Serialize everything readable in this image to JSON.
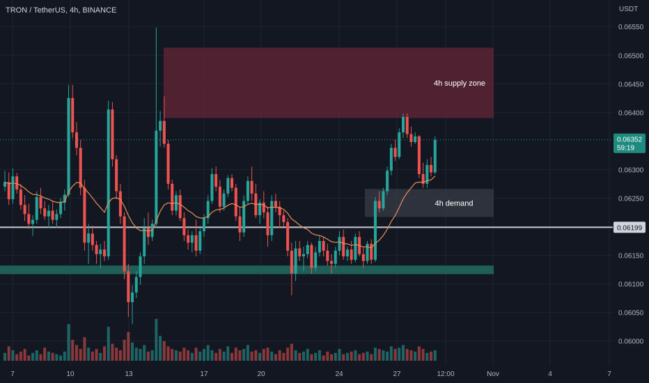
{
  "header": {
    "symbol_title": "TRON / TetherUS, 4h, BINANCE",
    "currency": "USDT"
  },
  "colors": {
    "background": "#131722",
    "grid": "#1e2433",
    "up": "#26a69a",
    "down": "#ef5350",
    "ema": "#e8905a",
    "supply_zone": "#5c2434",
    "demand_zone": "#363a45",
    "support_band": "#1f5f58",
    "horizontal_line": "#c9cbd1"
  },
  "chart_data": {
    "type": "candlestick",
    "y_axis": {
      "range": [
        0.05985,
        0.0656
      ],
      "ticks": [
        "0.06550",
        "0.06500",
        "0.06450",
        "0.06400",
        "0.06300",
        "0.06250",
        "0.06150",
        "0.06100",
        "0.06050",
        "0.06000"
      ],
      "current_price": "0.06352",
      "countdown": "59:19",
      "horizontal_line_label": "0.06199"
    },
    "x_axis": {
      "labels": [
        "7",
        "10",
        "13",
        "17",
        "20",
        "24",
        "27",
        "12:00",
        "Nov",
        "4",
        "7"
      ]
    },
    "annotations": {
      "supply_zone": {
        "label": "4h supply zone",
        "top": 0.06513,
        "bottom": 0.0639
      },
      "demand_zone": {
        "label": "4h demand",
        "top": 0.06266,
        "bottom": 0.06217
      },
      "support_band": {
        "top": 0.06132,
        "bottom": 0.06117
      },
      "horizontal_line": 0.06199
    },
    "candles": [
      [
        0.0627,
        0.06298,
        0.06262,
        0.06278
      ],
      [
        0.06278,
        0.06295,
        0.06238,
        0.06248
      ],
      [
        0.06248,
        0.06302,
        0.0624,
        0.06288
      ],
      [
        0.06288,
        0.06294,
        0.06258,
        0.06265
      ],
      [
        0.06265,
        0.06275,
        0.0623,
        0.06238
      ],
      [
        0.06238,
        0.06255,
        0.0621,
        0.06222
      ],
      [
        0.06222,
        0.0624,
        0.06196,
        0.06205
      ],
      [
        0.06205,
        0.0622,
        0.06184,
        0.06212
      ],
      [
        0.06212,
        0.06262,
        0.06205,
        0.06252
      ],
      [
        0.06252,
        0.06268,
        0.06222,
        0.06232
      ],
      [
        0.06232,
        0.06245,
        0.06212,
        0.06218
      ],
      [
        0.06218,
        0.06238,
        0.06198,
        0.06228
      ],
      [
        0.06228,
        0.06245,
        0.06205,
        0.06212
      ],
      [
        0.06212,
        0.0623,
        0.06198,
        0.06222
      ],
      [
        0.06222,
        0.0625,
        0.06215,
        0.06242
      ],
      [
        0.06242,
        0.06265,
        0.06228,
        0.06256
      ],
      [
        0.06256,
        0.06448,
        0.06252,
        0.06425
      ],
      [
        0.06425,
        0.06448,
        0.06355,
        0.06365
      ],
      [
        0.06365,
        0.06383,
        0.06325,
        0.06338
      ],
      [
        0.06338,
        0.06352,
        0.06255,
        0.06268
      ],
      [
        0.06268,
        0.06282,
        0.06158,
        0.06172
      ],
      [
        0.06172,
        0.06205,
        0.06135,
        0.06188
      ],
      [
        0.06188,
        0.06202,
        0.06158,
        0.06168
      ],
      [
        0.06168,
        0.06175,
        0.06135,
        0.06152
      ],
      [
        0.06152,
        0.0617,
        0.06128,
        0.0616
      ],
      [
        0.0616,
        0.06175,
        0.0614,
        0.06148
      ],
      [
        0.06148,
        0.0642,
        0.06142,
        0.06405
      ],
      [
        0.06405,
        0.06418,
        0.06305,
        0.06318
      ],
      [
        0.06318,
        0.06325,
        0.06248,
        0.06262
      ],
      [
        0.06262,
        0.06275,
        0.06205,
        0.06218
      ],
      [
        0.06218,
        0.06225,
        0.06108,
        0.06122
      ],
      [
        0.06122,
        0.06135,
        0.06042,
        0.06068
      ],
      [
        0.06068,
        0.06098,
        0.0603,
        0.06085
      ],
      [
        0.06085,
        0.06122,
        0.06075,
        0.06112
      ],
      [
        0.06112,
        0.06155,
        0.06098,
        0.06148
      ],
      [
        0.06148,
        0.06215,
        0.06135,
        0.06198
      ],
      [
        0.06198,
        0.06225,
        0.06168,
        0.06182
      ],
      [
        0.06182,
        0.06212,
        0.06175,
        0.06205
      ],
      [
        0.06205,
        0.06548,
        0.06198,
        0.06368
      ],
      [
        0.06368,
        0.06402,
        0.0634,
        0.06385
      ],
      [
        0.06385,
        0.06428,
        0.06338,
        0.06345
      ],
      [
        0.06345,
        0.06352,
        0.06265,
        0.06275
      ],
      [
        0.06275,
        0.06282,
        0.0622,
        0.06228
      ],
      [
        0.06228,
        0.06262,
        0.0622,
        0.06255
      ],
      [
        0.06255,
        0.06265,
        0.0621,
        0.06215
      ],
      [
        0.06215,
        0.06225,
        0.06175,
        0.06185
      ],
      [
        0.06185,
        0.06195,
        0.0616,
        0.06172
      ],
      [
        0.06172,
        0.06192,
        0.06155,
        0.06185
      ],
      [
        0.06185,
        0.06212,
        0.06148,
        0.06158
      ],
      [
        0.06158,
        0.06198,
        0.06152,
        0.06192
      ],
      [
        0.06192,
        0.06222,
        0.06182,
        0.06215
      ],
      [
        0.06215,
        0.06255,
        0.06205,
        0.06245
      ],
      [
        0.06245,
        0.06302,
        0.0624,
        0.06292
      ],
      [
        0.06292,
        0.06305,
        0.06262,
        0.0627
      ],
      [
        0.0627,
        0.06282,
        0.06225,
        0.06235
      ],
      [
        0.06235,
        0.06265,
        0.06228,
        0.06258
      ],
      [
        0.06258,
        0.0629,
        0.06252,
        0.06285
      ],
      [
        0.06285,
        0.06292,
        0.06262,
        0.06268
      ],
      [
        0.06268,
        0.06275,
        0.0621,
        0.06218
      ],
      [
        0.06218,
        0.06235,
        0.06175,
        0.0619
      ],
      [
        0.0619,
        0.06255,
        0.06182,
        0.06245
      ],
      [
        0.06245,
        0.06288,
        0.0624,
        0.0628
      ],
      [
        0.0628,
        0.06305,
        0.06245,
        0.06258
      ],
      [
        0.06258,
        0.06275,
        0.06215,
        0.0622
      ],
      [
        0.0622,
        0.06248,
        0.06205,
        0.06242
      ],
      [
        0.06242,
        0.06262,
        0.06215,
        0.06225
      ],
      [
        0.06225,
        0.06235,
        0.06165,
        0.06185
      ],
      [
        0.06185,
        0.06255,
        0.06175,
        0.06245
      ],
      [
        0.06245,
        0.06258,
        0.06225,
        0.06235
      ],
      [
        0.06235,
        0.06245,
        0.06198,
        0.0622
      ],
      [
        0.0622,
        0.06228,
        0.062,
        0.06208
      ],
      [
        0.06208,
        0.06215,
        0.06148,
        0.06158
      ],
      [
        0.06158,
        0.06172,
        0.0608,
        0.06118
      ],
      [
        0.06118,
        0.06175,
        0.06105,
        0.06162
      ],
      [
        0.06162,
        0.06175,
        0.0614,
        0.06148
      ],
      [
        0.06148,
        0.06165,
        0.06122,
        0.06152
      ],
      [
        0.06152,
        0.06175,
        0.06145,
        0.06168
      ],
      [
        0.06168,
        0.06172,
        0.06118,
        0.06128
      ],
      [
        0.06128,
        0.06165,
        0.06122,
        0.06155
      ],
      [
        0.06155,
        0.06185,
        0.06148,
        0.06175
      ],
      [
        0.06175,
        0.06182,
        0.06148,
        0.06158
      ],
      [
        0.06158,
        0.0617,
        0.06132,
        0.0614
      ],
      [
        0.0614,
        0.06152,
        0.06118,
        0.06135
      ],
      [
        0.06135,
        0.06165,
        0.06128,
        0.06158
      ],
      [
        0.06158,
        0.06192,
        0.0615,
        0.06182
      ],
      [
        0.06182,
        0.06195,
        0.06142,
        0.06148
      ],
      [
        0.06148,
        0.06165,
        0.0614,
        0.0616
      ],
      [
        0.0616,
        0.06175,
        0.06135,
        0.06142
      ],
      [
        0.06142,
        0.06188,
        0.06138,
        0.06182
      ],
      [
        0.06182,
        0.06192,
        0.06148,
        0.06152
      ],
      [
        0.06152,
        0.06165,
        0.06128,
        0.0614
      ],
      [
        0.0614,
        0.06175,
        0.06135,
        0.0617
      ],
      [
        0.0617,
        0.06178,
        0.06135,
        0.06142
      ],
      [
        0.06142,
        0.06252,
        0.06138,
        0.06245
      ],
      [
        0.06245,
        0.06262,
        0.06225,
        0.06232
      ],
      [
        0.06232,
        0.06268,
        0.06228,
        0.06262
      ],
      [
        0.06262,
        0.06305,
        0.06255,
        0.06298
      ],
      [
        0.06298,
        0.06345,
        0.0629,
        0.06338
      ],
      [
        0.06338,
        0.06352,
        0.06315,
        0.06322
      ],
      [
        0.06322,
        0.06372,
        0.06318,
        0.06365
      ],
      [
        0.06365,
        0.06398,
        0.06355,
        0.06392
      ],
      [
        0.06392,
        0.06398,
        0.06355,
        0.06362
      ],
      [
        0.06362,
        0.06375,
        0.0634,
        0.06348
      ],
      [
        0.06348,
        0.06365,
        0.06345,
        0.06358
      ],
      [
        0.06358,
        0.0636,
        0.06285,
        0.06292
      ],
      [
        0.06292,
        0.06312,
        0.06268,
        0.06275
      ],
      [
        0.06275,
        0.06318,
        0.06268,
        0.06308
      ],
      [
        0.06308,
        0.06322,
        0.06288,
        0.06295
      ],
      [
        0.06295,
        0.06358,
        0.06292,
        0.06352
      ]
    ],
    "volume": [
      0.6,
      1.1,
      0.8,
      0.5,
      0.7,
      0.9,
      0.4,
      0.6,
      0.8,
      0.5,
      1.0,
      0.7,
      0.6,
      0.5,
      0.4,
      0.7,
      2.8,
      1.6,
      1.2,
      0.9,
      1.8,
      1.0,
      0.7,
      0.9,
      0.6,
      1.1,
      2.6,
      1.3,
      1.0,
      0.8,
      1.6,
      2.2,
      1.4,
      1.0,
      0.9,
      1.2,
      0.7,
      0.8,
      3.2,
      1.9,
      1.5,
      1.1,
      0.9,
      0.8,
      0.7,
      1.0,
      0.8,
      0.6,
      1.0,
      0.7,
      0.9,
      1.2,
      0.8,
      0.6,
      0.9,
      0.7,
      1.1,
      0.6,
      1.0,
      0.8,
      0.9,
      1.2,
      0.7,
      0.8,
      0.6,
      0.9,
      1.0,
      0.7,
      0.5,
      0.8,
      0.6,
      1.0,
      1.3,
      0.8,
      0.6,
      0.7,
      0.9,
      0.5,
      0.6,
      0.8,
      0.4,
      0.7,
      0.5,
      0.6,
      0.9,
      0.5,
      0.6,
      0.7,
      0.8,
      0.5,
      0.6,
      0.7,
      0.5,
      1.0,
      0.9,
      0.8,
      0.7,
      1.1,
      0.9,
      1.0,
      1.2,
      0.9,
      0.8,
      0.7,
      1.1,
      0.9,
      0.6,
      0.7,
      0.8
    ]
  }
}
